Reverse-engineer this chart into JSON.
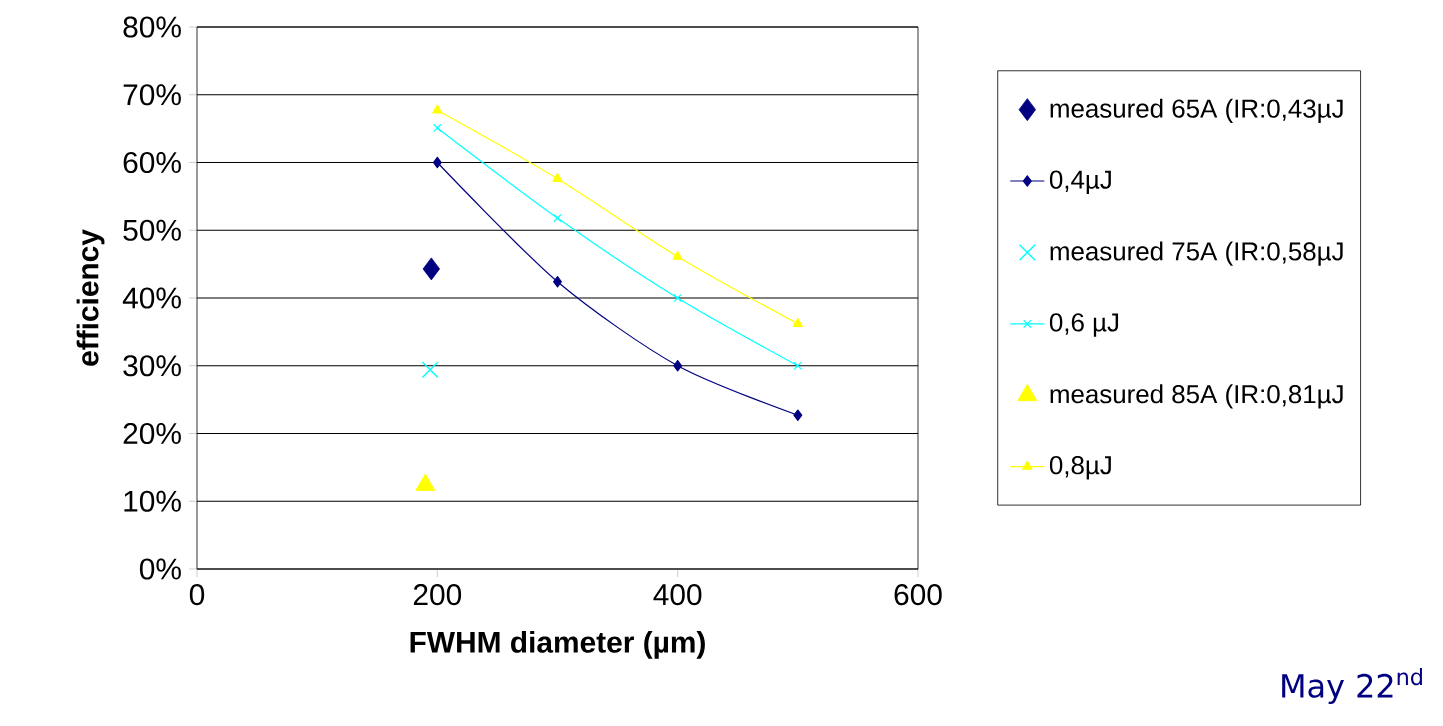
{
  "chart_data": {
    "type": "line",
    "xlabel": "FWHM diameter (µm)",
    "ylabel": "efficiency",
    "annotations": [
      "May 22$^{nd}$"
    ],
    "xlim": [
      0,
      600
    ],
    "xticks": [
      0,
      200,
      400,
      600
    ],
    "ylim": [
      0,
      80
    ],
    "yticks": [
      {
        "value": 0,
        "label": "0%"
      },
      {
        "value": 10,
        "label": "10%"
      },
      {
        "value": 20,
        "label": "20%"
      },
      {
        "value": 30,
        "label": "30%"
      },
      {
        "value": 40,
        "label": "40%"
      },
      {
        "value": 50,
        "label": "50%"
      },
      {
        "value": 60,
        "label": "60%"
      },
      {
        "value": 70,
        "label": "70%"
      },
      {
        "value": 80,
        "label": "80%"
      }
    ],
    "grid": "y",
    "legend": "right",
    "series": [
      {
        "name": "measured 65A (IR:0,43µJ",
        "type": "scatter",
        "marker": "diamond",
        "color": "#000080",
        "x": [
          195
        ],
        "values": [
          44.3
        ]
      },
      {
        "name": "0,4µJ",
        "type": "line",
        "marker": "diamond",
        "color": "#000080",
        "x": [
          200,
          300,
          400,
          500
        ],
        "values": [
          60,
          42.4,
          30,
          22.7
        ]
      },
      {
        "name": "measured 75A (IR:0,58µJ",
        "type": "scatter",
        "marker": "cross",
        "color": "#00ffff",
        "x": [
          194
        ],
        "values": [
          29.4
        ]
      },
      {
        "name": "0,6 µJ",
        "type": "line",
        "marker": "cross",
        "color": "#00ffff",
        "x": [
          200,
          300,
          400,
          500
        ],
        "values": [
          65.1,
          51.8,
          40,
          30
        ]
      },
      {
        "name": "measured 85A (IR:0,81µJ",
        "type": "scatter",
        "marker": "triangle",
        "color": "#ffff00",
        "x": [
          190
        ],
        "values": [
          12.4
        ]
      },
      {
        "name": "0,8µJ",
        "type": "line",
        "marker": "triangle",
        "color": "#ffff00",
        "x": [
          200,
          300,
          400,
          500
        ],
        "values": [
          67.7,
          57.6,
          46.1,
          36.2
        ]
      }
    ]
  }
}
